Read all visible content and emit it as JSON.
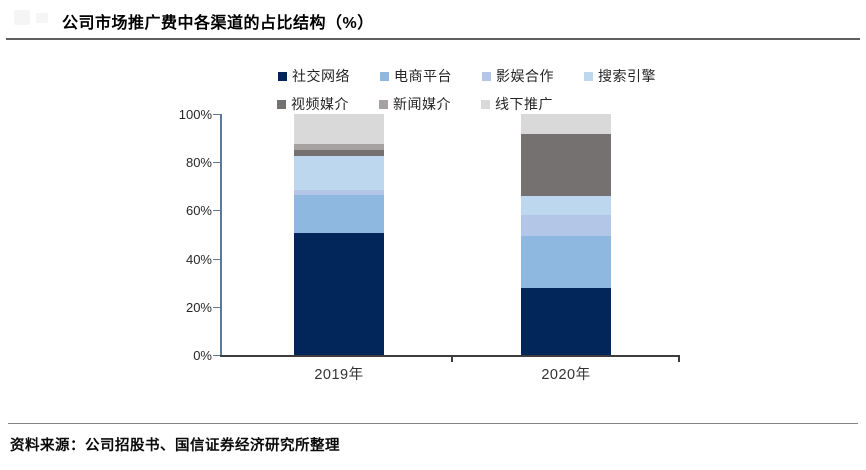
{
  "header": {
    "title": "公司市场推广费中各渠道的占比结构（%）"
  },
  "footer": {
    "source": "资料来源：公司招股书、国信证券经济研究所整理"
  },
  "chart_data": {
    "type": "bar",
    "stacked": true,
    "title": "公司市场推广费中各渠道的占比结构（%）",
    "categories": [
      "2019年",
      "2020年"
    ],
    "series": [
      {
        "id": "social-network",
        "name": "社交网络",
        "color": "#02265a",
        "values": [
          50.5,
          28
        ]
      },
      {
        "id": "ecommerce-platform",
        "name": "电商平台",
        "color": "#8fb8e0",
        "values": [
          16,
          21.5
        ]
      },
      {
        "id": "film-entertainment",
        "name": "影娱合作",
        "color": "#b4c6e7",
        "values": [
          2,
          8.5
        ]
      },
      {
        "id": "search-engine",
        "name": "搜索引擎",
        "color": "#bdd7ee",
        "values": [
          14,
          8
        ]
      },
      {
        "id": "video-media",
        "name": "视频媒介",
        "color": "#767171",
        "values": [
          2.5,
          25.5
        ]
      },
      {
        "id": "news-media",
        "name": "新闻媒介",
        "color": "#a6a2a2",
        "values": [
          2.5,
          0
        ]
      },
      {
        "id": "offline-promotion",
        "name": "线下推广",
        "color": "#d9d9d9",
        "values": [
          12.5,
          8.5
        ]
      }
    ],
    "y_ticks": [
      "0%",
      "20%",
      "40%",
      "60%",
      "80%",
      "100%"
    ],
    "ylim": [
      0,
      100
    ],
    "ylabel": "",
    "xlabel": "",
    "grid": false,
    "legend_position": "top",
    "legend_rows": [
      4,
      3
    ],
    "axis_color": "#5b7a99",
    "x_axis_color": "#3d3d3d"
  }
}
